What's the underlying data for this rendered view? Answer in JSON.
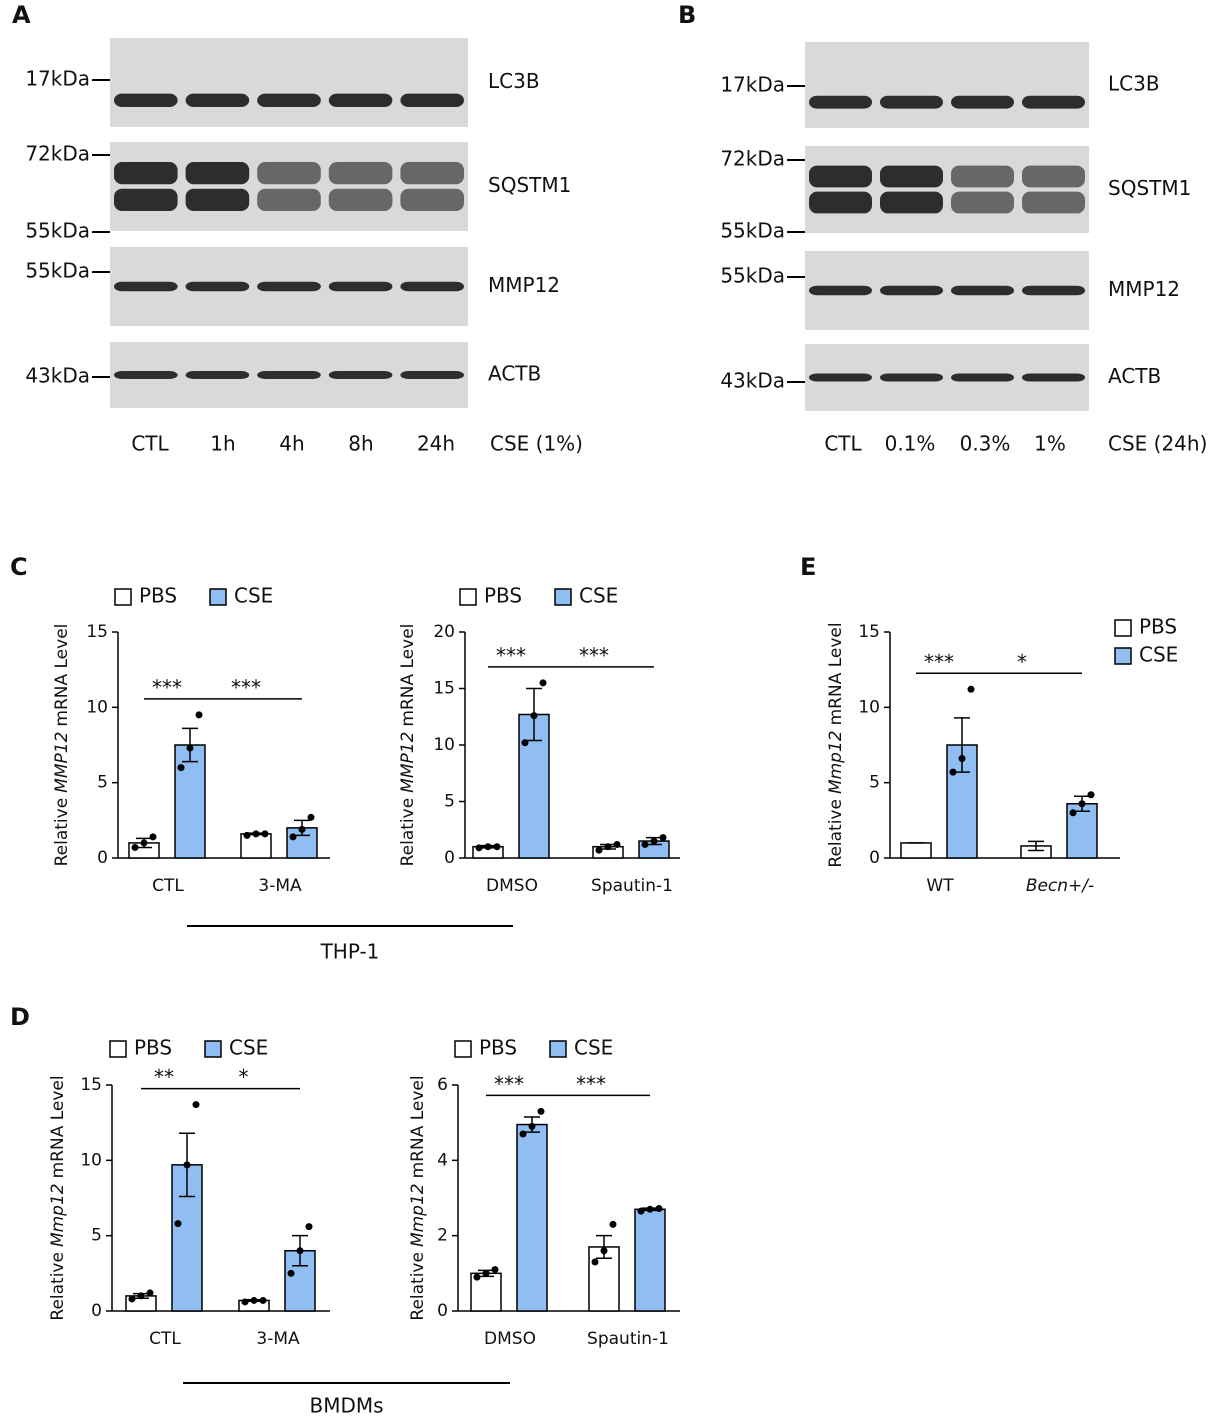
{
  "blots": [
    {
      "panel": "A",
      "rows": [
        {
          "markers": [
            "17kDa"
          ],
          "protein": "LC3B"
        },
        {
          "markers": [
            "72kDa",
            "55kDa"
          ],
          "protein": "SQSTM1"
        },
        {
          "markers": [
            "55kDa"
          ],
          "protein": "MMP12"
        },
        {
          "markers": [
            "43kDa"
          ],
          "protein": "ACTB"
        }
      ],
      "lanes": [
        "CTL",
        "1h",
        "4h",
        "8h",
        "24h"
      ],
      "treatment": "CSE (1%)"
    },
    {
      "panel": "B",
      "rows": [
        {
          "markers": [
            "17kDa"
          ],
          "protein": "LC3B"
        },
        {
          "markers": [
            "72kDa",
            "55kDa"
          ],
          "protein": "SQSTM1"
        },
        {
          "markers": [
            "55kDa"
          ],
          "protein": "MMP12"
        },
        {
          "markers": [
            "43kDa"
          ],
          "protein": "ACTB"
        }
      ],
      "lanes": [
        "CTL",
        "0.1%",
        "0.3%",
        "1%"
      ],
      "treatment": "CSE (24h)"
    }
  ],
  "groups": [
    "THP-1",
    "BMDMs"
  ],
  "chart_data": [
    {
      "type": "bar",
      "panel": "C",
      "ylabel": [
        "Relative",
        "MMP12",
        "mRNA Level"
      ],
      "categories": [
        "CTL",
        "3-MA"
      ],
      "ylim": [
        0,
        15
      ],
      "yticks": [
        0,
        5,
        10,
        15
      ],
      "legend": "top",
      "significance": [
        "***",
        "***"
      ],
      "series": [
        {
          "name": "PBS",
          "color": "#ffffff",
          "values": [
            1.0,
            1.6
          ],
          "errors": [
            0.3,
            0.05
          ],
          "points": [
            [
              0.7,
              1.0,
              1.4
            ],
            [
              1.5,
              1.6,
              1.6
            ]
          ]
        },
        {
          "name": "CSE",
          "color": "#90bdf2",
          "values": [
            7.5,
            2.0
          ],
          "errors": [
            1.1,
            0.5
          ],
          "points": [
            [
              6.0,
              7.3,
              9.5
            ],
            [
              1.4,
              1.9,
              2.7
            ]
          ]
        }
      ]
    },
    {
      "type": "bar",
      "ylabel": [
        "Relative",
        "MMP12",
        "mRNA Level"
      ],
      "categories": [
        "DMSO",
        "Spautin-1"
      ],
      "ylim": [
        0,
        20
      ],
      "yticks": [
        0,
        5,
        10,
        15,
        20
      ],
      "legend": "top",
      "significance": [
        "***",
        "***"
      ],
      "series": [
        {
          "name": "PBS",
          "color": "#ffffff",
          "values": [
            1.0,
            1.0
          ],
          "errors": [
            0.1,
            0.2
          ],
          "points": [
            [
              0.9,
              1.0,
              1.0
            ],
            [
              0.7,
              1.0,
              1.2
            ]
          ]
        },
        {
          "name": "CSE",
          "color": "#90bdf2",
          "values": [
            12.7,
            1.5
          ],
          "errors": [
            2.3,
            0.3
          ],
          "points": [
            [
              10.2,
              12.6,
              15.5
            ],
            [
              1.2,
              1.5,
              1.8
            ]
          ]
        }
      ]
    },
    {
      "type": "bar",
      "panel": "D",
      "ylabel": [
        "Relative",
        "Mmp12",
        "mRNA Level"
      ],
      "categories": [
        "CTL",
        "3-MA"
      ],
      "ylim": [
        0,
        15
      ],
      "yticks": [
        0,
        5,
        10,
        15
      ],
      "legend": "top",
      "significance": [
        "**",
        "*"
      ],
      "series": [
        {
          "name": "PBS",
          "color": "#ffffff",
          "values": [
            1.0,
            0.7
          ],
          "errors": [
            0.15,
            0.05
          ],
          "points": [
            [
              0.8,
              1.0,
              1.2
            ],
            [
              0.6,
              0.7,
              0.7
            ]
          ]
        },
        {
          "name": "CSE",
          "color": "#90bdf2",
          "values": [
            9.7,
            4.0
          ],
          "errors": [
            2.1,
            1.0
          ],
          "points": [
            [
              5.8,
              9.7,
              13.7
            ],
            [
              2.5,
              4.0,
              5.6
            ]
          ]
        }
      ]
    },
    {
      "type": "bar",
      "ylabel": [
        "Relative",
        "Mmp12",
        "mRNA Level"
      ],
      "categories": [
        "DMSO",
        "Spautin-1"
      ],
      "ylim": [
        0,
        6
      ],
      "yticks": [
        0,
        2,
        4,
        6
      ],
      "legend": "top",
      "significance": [
        "***",
        "***"
      ],
      "series": [
        {
          "name": "PBS",
          "color": "#ffffff",
          "values": [
            1.0,
            1.7
          ],
          "errors": [
            0.08,
            0.3
          ],
          "points": [
            [
              0.9,
              1.0,
              1.1
            ],
            [
              1.3,
              1.6,
              2.3
            ]
          ]
        },
        {
          "name": "CSE",
          "color": "#90bdf2",
          "values": [
            4.95,
            2.7
          ],
          "errors": [
            0.2,
            0.03
          ],
          "points": [
            [
              4.7,
              4.9,
              5.3
            ],
            [
              2.65,
              2.7,
              2.72
            ]
          ]
        }
      ]
    },
    {
      "type": "bar",
      "panel": "E",
      "ylabel": [
        "Relative",
        "Mmp12",
        "mRNA Level"
      ],
      "categories": [
        "WT",
        "Becn+/-"
      ],
      "ylim": [
        0,
        15
      ],
      "yticks": [
        0,
        5,
        10,
        15
      ],
      "legend": "right",
      "significance": [
        "***",
        "*"
      ],
      "series": [
        {
          "name": "PBS",
          "color": "#ffffff",
          "values": [
            1.0,
            0.8
          ],
          "errors": [
            0,
            0.3
          ],
          "points": null
        },
        {
          "name": "CSE",
          "color": "#90bdf2",
          "values": [
            7.5,
            3.6
          ],
          "errors": [
            1.8,
            0.5
          ],
          "points": [
            [
              5.7,
              6.6,
              11.2
            ],
            [
              3.0,
              3.6,
              4.2
            ]
          ]
        }
      ]
    }
  ]
}
